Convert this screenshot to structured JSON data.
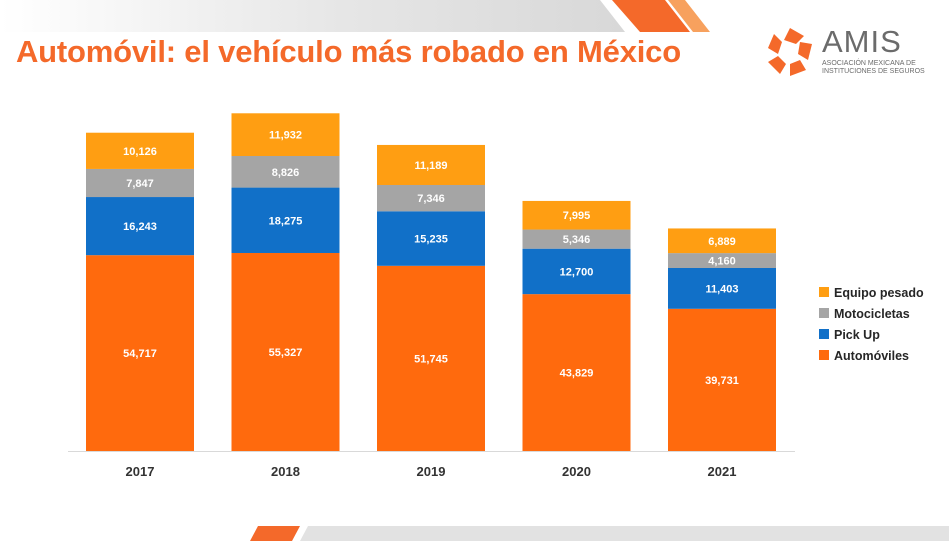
{
  "header": {
    "title": "Automóvil: el vehículo más robado en México"
  },
  "logo": {
    "name": "AMIS",
    "subtitle_line1": "ASOCIACIÓN MEXICANA DE",
    "subtitle_line2": "INSTITUCIONES DE SEGUROS"
  },
  "colors": {
    "accent": "#F4692A",
    "equipo_pesado": "#FF9E12",
    "motocicletas": "#A5A5A5",
    "pick_up": "#1170C8",
    "automoviles": "#FF6A0D"
  },
  "chart_data": {
    "type": "bar",
    "stacked": true,
    "categories": [
      "2017",
      "2018",
      "2019",
      "2020",
      "2021"
    ],
    "series": [
      {
        "name": "Automóviles",
        "values": [
          54717,
          55327,
          51745,
          43829,
          39731
        ],
        "labels": [
          "54,717",
          "55,327",
          "51,745",
          "43,829",
          "39,731"
        ]
      },
      {
        "name": "Pick Up",
        "values": [
          16243,
          18275,
          15235,
          12700,
          11403
        ],
        "labels": [
          "16,243",
          "18,275",
          "15,235",
          "12,700",
          "11,403"
        ]
      },
      {
        "name": "Motocicletas",
        "values": [
          7847,
          8826,
          7346,
          5346,
          4160
        ],
        "labels": [
          "7,847",
          "8,826",
          "7,346",
          "5,346",
          "4,160"
        ]
      },
      {
        "name": "Equipo pesado",
        "values": [
          10126,
          11932,
          11189,
          7995,
          6889
        ],
        "labels": [
          "10,126",
          "11,932",
          "11,189",
          "7,995",
          "6,889"
        ]
      }
    ],
    "legend_order": [
      "Equipo pesado",
      "Motocicletas",
      "Pick Up",
      "Automóviles"
    ],
    "legend_position": "right",
    "ylim": [
      0,
      95000
    ],
    "grid": false
  }
}
